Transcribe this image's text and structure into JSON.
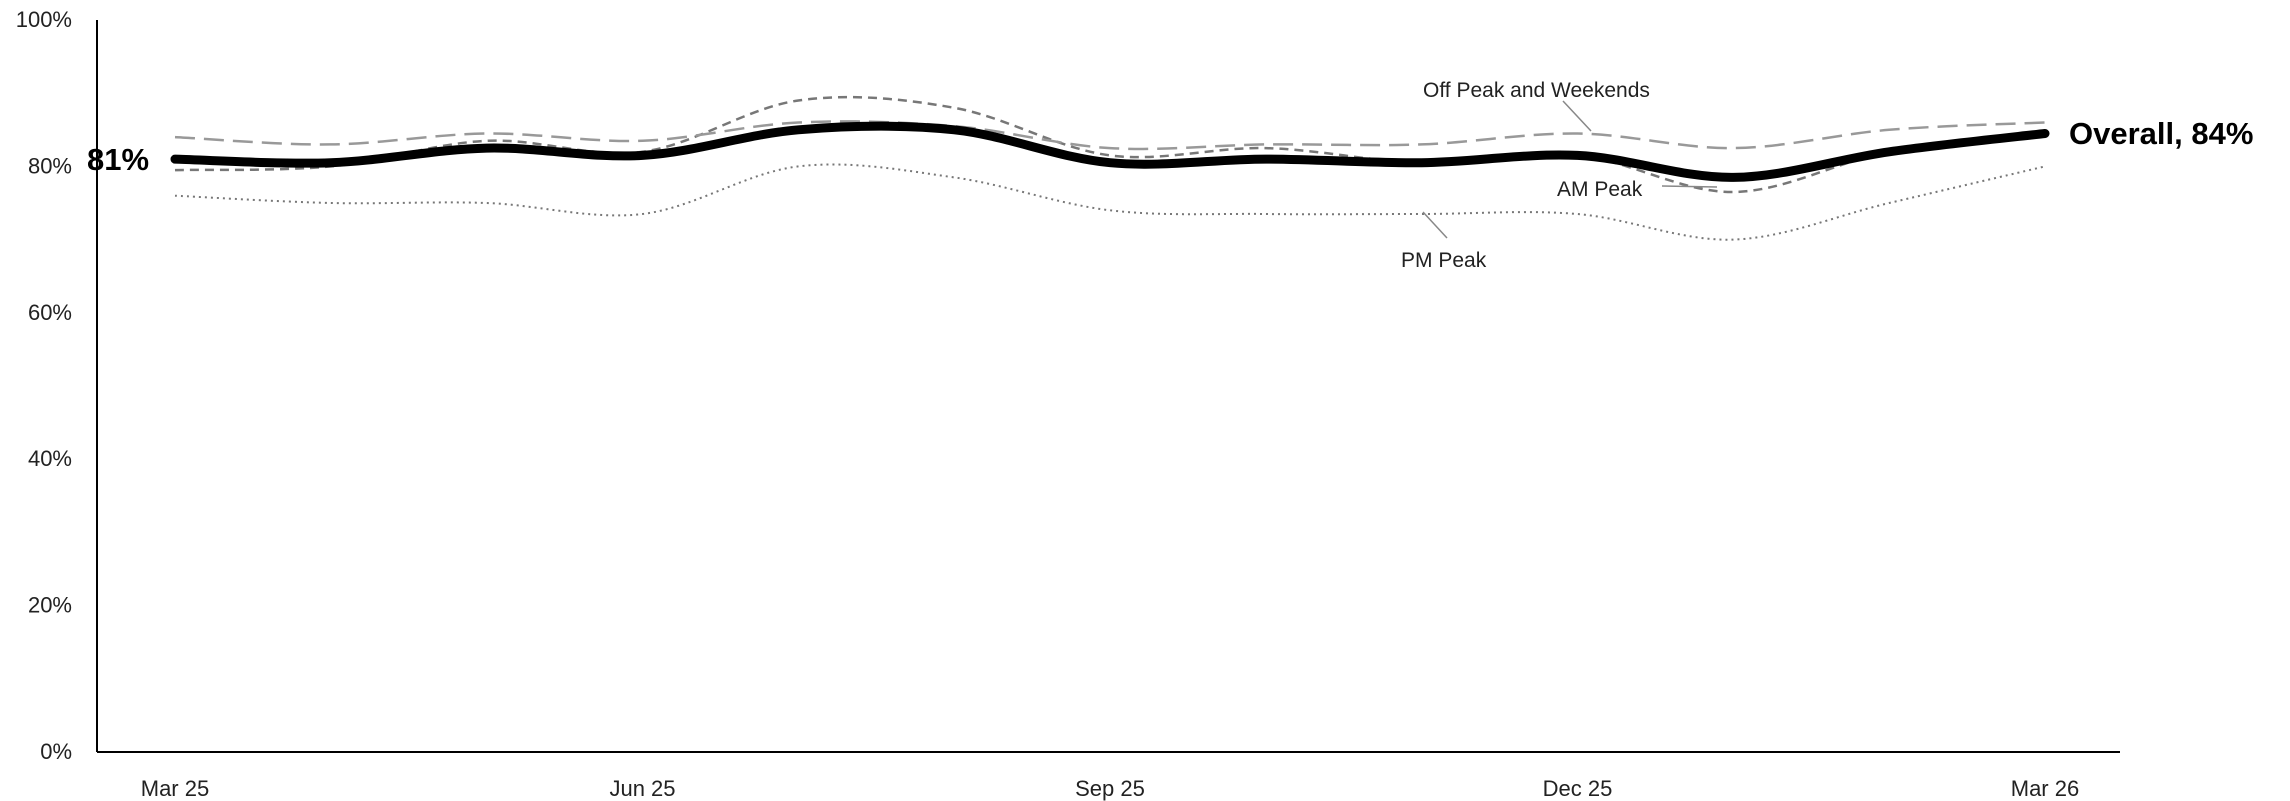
{
  "chart_data": {
    "type": "line",
    "x": [
      "Mar 25",
      "Apr 25",
      "May 25",
      "Jun 25",
      "Jul 25",
      "Aug 25",
      "Sep 25",
      "Oct 25",
      "Nov 25",
      "Dec 25",
      "Jan 26",
      "Feb 26",
      "Mar 26"
    ],
    "xtick_labels": [
      "Mar 25",
      "Jun 25",
      "Sep 25",
      "Dec 25",
      "Mar 26"
    ],
    "yticks": [
      "0%",
      "20%",
      "40%",
      "60%",
      "80%",
      "100%"
    ],
    "ylim": [
      0,
      100
    ],
    "grid": false,
    "series": [
      {
        "name": "Overall",
        "style": "solid-thick",
        "color": "#000000",
        "values": [
          81,
          80.5,
          82.5,
          81.5,
          85,
          85,
          80.5,
          81,
          80.5,
          81.5,
          78.5,
          82,
          84.5
        ]
      },
      {
        "name": "Off Peak and Weekends",
        "style": "long-dash",
        "color": "#999999",
        "values": [
          84,
          83,
          84.5,
          83.5,
          86,
          85.5,
          82.5,
          83,
          83,
          84.5,
          82.5,
          85,
          86
        ]
      },
      {
        "name": "AM Peak",
        "style": "short-dash",
        "color": "#777777",
        "values": [
          79.5,
          80,
          83.5,
          82,
          89,
          88,
          81.5,
          82.5,
          80.5,
          81.5,
          76.5,
          82,
          84.5
        ]
      },
      {
        "name": "PM Peak",
        "style": "dotted",
        "color": "#777777",
        "values": [
          76,
          75,
          75,
          73.5,
          80,
          78.5,
          74,
          73.5,
          73.5,
          73.5,
          70,
          75,
          80
        ]
      }
    ],
    "annotations": {
      "start_label": "81%",
      "end_label": "Overall, 84%",
      "off_peak_label": "Off Peak and Weekends",
      "am_peak_label": "AM Peak",
      "pm_peak_label": "PM Peak"
    }
  }
}
